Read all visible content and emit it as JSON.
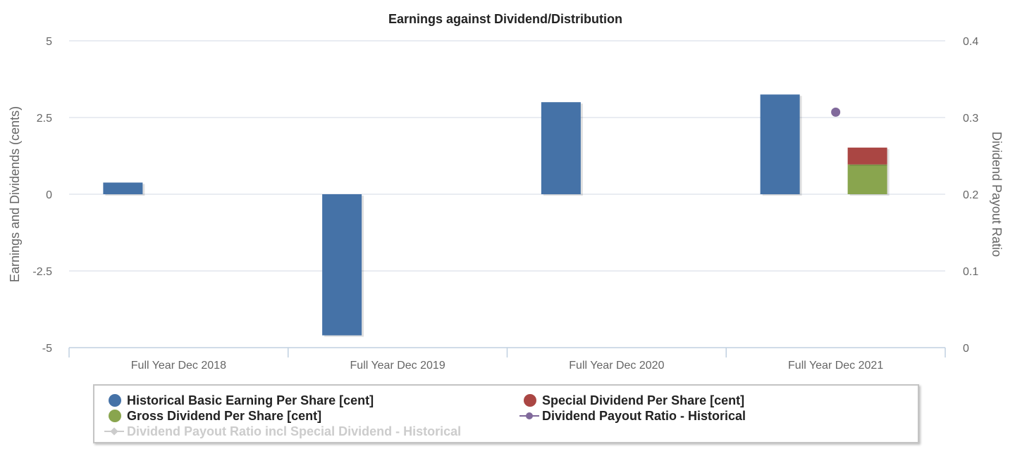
{
  "chart_data": {
    "type": "bar",
    "title": "Earnings against Dividend/Distribution",
    "categories": [
      "Full Year Dec 2018",
      "Full Year Dec 2019",
      "Full Year Dec 2020",
      "Full Year Dec 2021"
    ],
    "y_left": {
      "label": "Earnings and Dividends (cents)",
      "range": [
        -5,
        5
      ],
      "ticks": [
        5,
        2.5,
        0,
        -2.5,
        -5
      ],
      "tick_labels": [
        "5",
        "2.5",
        "0",
        "-2.5",
        "-5"
      ]
    },
    "y_right": {
      "label": "Dividend Payout Ratio",
      "range": [
        0,
        0.4
      ],
      "ticks": [
        0.4,
        0.3,
        0.2,
        0.1,
        0
      ],
      "tick_labels": [
        "0.4",
        "0.3",
        "0.2",
        "0.1",
        "0"
      ]
    },
    "series": [
      {
        "name": "Historical Basic Earning Per Share [cent]",
        "type": "bar",
        "axis": "left",
        "color": "#4572A7",
        "values": [
          0.38,
          -4.6,
          3.0,
          3.25
        ]
      },
      {
        "name": "Special Dividend Per Share [cent]",
        "type": "bar",
        "stack": "dividend",
        "axis": "left",
        "color": "#AA4643",
        "values": [
          null,
          null,
          null,
          0.55
        ]
      },
      {
        "name": "Gross Dividend Per Share [cent]",
        "type": "bar",
        "stack": "dividend",
        "axis": "left",
        "color": "#89A54E",
        "values": [
          null,
          null,
          null,
          0.97
        ]
      },
      {
        "name": "Dividend Payout Ratio - Historical",
        "type": "line",
        "axis": "right",
        "color": "#80699B",
        "values": [
          null,
          null,
          null,
          0.307
        ]
      },
      {
        "name": "Dividend Payout Ratio incl Special Dividend - Historical",
        "type": "line",
        "axis": "right",
        "color": "#cccccc",
        "hidden": true,
        "values": [
          null,
          null,
          null,
          null
        ]
      }
    ],
    "legend_position": "bottom"
  }
}
